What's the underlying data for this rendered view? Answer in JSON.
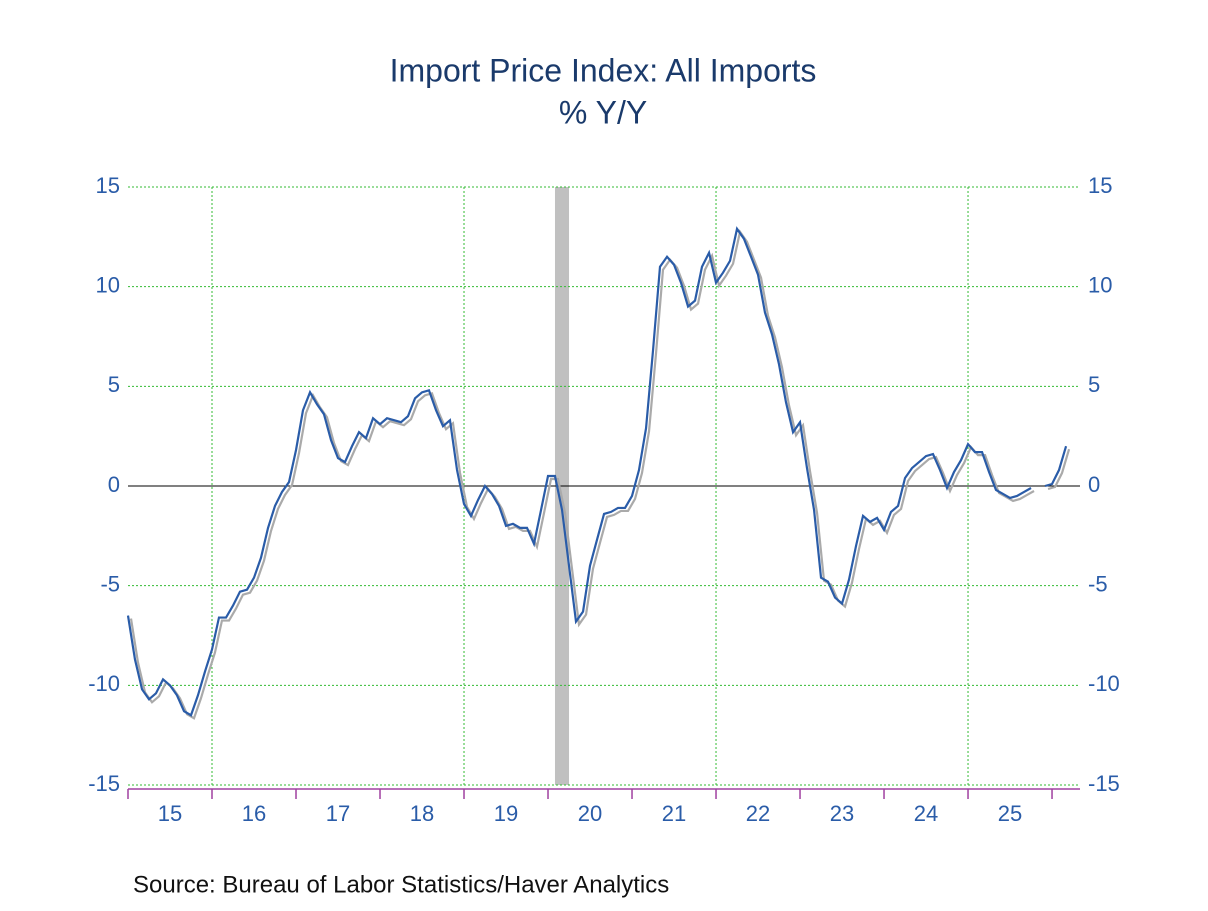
{
  "chart_data": {
    "type": "line",
    "title": "Import Price Index: All Imports",
    "subtitle": "% Y/Y",
    "source": "Source:  Bureau of Labor Statistics/Haver Analytics",
    "x": [
      2015,
      2015.083,
      2015.167,
      2015.25,
      2015.333,
      2015.417,
      2015.5,
      2015.583,
      2015.667,
      2015.75,
      2015.833,
      2015.917,
      2016,
      2016.083,
      2016.167,
      2016.25,
      2016.333,
      2016.417,
      2016.5,
      2016.583,
      2016.667,
      2016.75,
      2016.833,
      2016.917,
      2017,
      2017.083,
      2017.167,
      2017.25,
      2017.333,
      2017.417,
      2017.5,
      2017.583,
      2017.667,
      2017.75,
      2017.833,
      2017.917,
      2018,
      2018.083,
      2018.167,
      2018.25,
      2018.333,
      2018.417,
      2018.5,
      2018.583,
      2018.667,
      2018.75,
      2018.833,
      2018.917,
      2019,
      2019.083,
      2019.167,
      2019.25,
      2019.333,
      2019.417,
      2019.5,
      2019.583,
      2019.667,
      2019.75,
      2019.833,
      2019.917,
      2020,
      2020.083,
      2020.167,
      2020.25,
      2020.333,
      2020.417,
      2020.5,
      2020.583,
      2020.667,
      2020.75,
      2020.833,
      2020.917,
      2021,
      2021.083,
      2021.167,
      2021.25,
      2021.333,
      2021.417,
      2021.5,
      2021.583,
      2021.667,
      2021.75,
      2021.833,
      2021.917,
      2022,
      2022.083,
      2022.167,
      2022.25,
      2022.333,
      2022.417,
      2022.5,
      2022.583,
      2022.667,
      2022.75,
      2022.833,
      2022.917,
      2023,
      2023.083,
      2023.167,
      2023.25,
      2023.333,
      2023.417,
      2023.5,
      2023.583,
      2023.667,
      2023.75,
      2023.833,
      2023.917,
      2024,
      2024.083,
      2024.167,
      2024.25,
      2024.333,
      2024.417,
      2024.5,
      2024.583,
      2024.667,
      2024.75,
      2024.833,
      2024.917,
      2025,
      2025.083,
      2025.167,
      2025.25,
      2025.333,
      2025.417,
      2025.5,
      2025.583,
      2025.667,
      2025.75,
      2025.833,
      2025.917,
      2026,
      2026.083,
      2026.167
    ],
    "series": [
      {
        "color": "#2a5ca8",
        "values": [
          -6.5,
          -8.7,
          -10.2,
          -10.7,
          -10.4,
          -9.7,
          -10.0,
          -10.5,
          -11.3,
          -11.5,
          -10.5,
          -9.3,
          -8.2,
          -6.6,
          -6.6,
          -6.0,
          -5.3,
          -5.2,
          -4.6,
          -3.6,
          -2.1,
          -1.0,
          -0.3,
          0.2,
          1.8,
          3.8,
          4.7,
          4.1,
          3.6,
          2.3,
          1.4,
          1.2,
          2.0,
          2.7,
          2.4,
          3.4,
          3.1,
          3.4,
          3.3,
          3.2,
          3.5,
          4.4,
          4.7,
          4.8,
          3.8,
          3.0,
          3.3,
          0.8,
          -0.9,
          -1.5,
          -0.7,
          0.0,
          -0.4,
          -1.0,
          -2.0,
          -1.9,
          -2.1,
          -2.1,
          -2.9,
          -1.2,
          0.5,
          0.5,
          -1.2,
          -4.0,
          -6.8,
          -6.3,
          -4.0,
          -2.7,
          -1.4,
          -1.3,
          -1.1,
          -1.1,
          -0.5,
          0.8,
          2.9,
          6.8,
          11.0,
          11.5,
          11.1,
          10.2,
          9.0,
          9.3,
          11.0,
          11.7,
          10.2,
          10.7,
          11.3,
          12.9,
          12.4,
          11.5,
          10.6,
          8.7,
          7.6,
          6.1,
          4.2,
          2.7,
          3.2,
          0.9,
          -1.2,
          -4.6,
          -4.8,
          -5.6,
          -5.9,
          -4.7,
          -3.0,
          -1.5,
          -1.8,
          -1.6,
          -2.2,
          -1.3,
          -1.0,
          0.4,
          0.9,
          1.2,
          1.5,
          1.6,
          0.8,
          -0.1,
          0.7,
          1.3,
          2.1,
          1.7,
          1.7,
          0.7,
          -0.2,
          -0.4,
          -0.6,
          -0.5,
          -0.3,
          -0.1,
          null,
          0.0,
          0.1,
          0.8,
          2.0
        ]
      }
    ],
    "xlim": [
      2015,
      2026.333
    ],
    "xticks": [
      2015,
      2016,
      2017,
      2018,
      2019,
      2020,
      2021,
      2022,
      2023,
      2024,
      2025,
      2026
    ],
    "xticklabels": [
      {
        "value": 2015.5,
        "label": "15"
      },
      {
        "value": 2016.5,
        "label": "16"
      },
      {
        "value": 2017.5,
        "label": "17"
      },
      {
        "value": 2018.5,
        "label": "18"
      },
      {
        "value": 2019.5,
        "label": "19"
      },
      {
        "value": 2020.5,
        "label": "20"
      },
      {
        "value": 2021.5,
        "label": "21"
      },
      {
        "value": 2022.5,
        "label": "22"
      },
      {
        "value": 2023.5,
        "label": "23"
      },
      {
        "value": 2024.5,
        "label": "24"
      },
      {
        "value": 2025.5,
        "label": "25"
      }
    ],
    "x_grid": [
      2016,
      2019,
      2022,
      2025
    ],
    "recession": [
      2020.083,
      2020.25
    ],
    "ylim": [
      -15,
      15
    ],
    "yticks": [
      -15,
      -10,
      -5,
      0,
      5,
      10,
      15
    ],
    "y2lim": [
      -15,
      15
    ],
    "y2ticks": [
      -15,
      -10,
      -5,
      0,
      5,
      10,
      15
    ],
    "grid": true
  }
}
